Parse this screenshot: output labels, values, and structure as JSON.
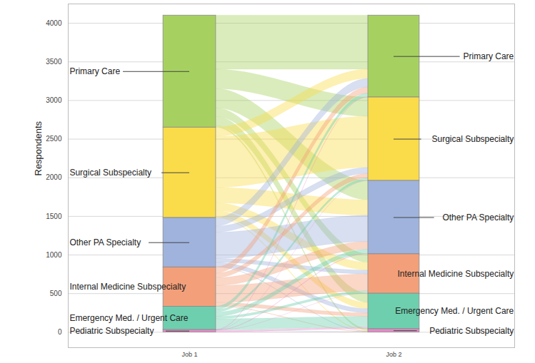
{
  "chart_data": {
    "type": "alluvial",
    "categories": [
      "Job 1",
      "Job 2"
    ],
    "y_label": "Respondents",
    "ylim": [
      -200,
      4250
    ],
    "yticks": [
      0,
      500,
      1000,
      1500,
      2000,
      2500,
      3000,
      3500,
      4000
    ],
    "grid": true,
    "nodes": [
      {
        "name": "Primary Care",
        "color": "#a6d160"
      },
      {
        "name": "Surgical Subspecialty",
        "color": "#fadc4a"
      },
      {
        "name": "Other PA Specialty",
        "color": "#9fb3dd"
      },
      {
        "name": "Internal Medicine Subspecialty",
        "color": "#f3a07a"
      },
      {
        "name": "Emergency Med. / Urgent Care",
        "color": "#6ecfae"
      },
      {
        "name": "Pediatric Subspecialty",
        "color": "#e88ac8"
      }
    ],
    "flows": [
      {
        "from": "Primary Care",
        "to": "Primary Care",
        "value": 700
      },
      {
        "from": "Primary Care",
        "to": "Surgical Subspecialty",
        "value": 250
      },
      {
        "from": "Primary Care",
        "to": "Other PA Specialty",
        "value": 250
      },
      {
        "from": "Primary Care",
        "to": "Internal Medicine Subspecialty",
        "value": 110
      },
      {
        "from": "Primary Care",
        "to": "Emergency Med. / Urgent Care",
        "value": 120
      },
      {
        "from": "Primary Care",
        "to": "Pediatric Subspecialty",
        "value": 20
      },
      {
        "from": "Surgical Subspecialty",
        "to": "Primary Care",
        "value": 120
      },
      {
        "from": "Surgical Subspecialty",
        "to": "Surgical Subspecialty",
        "value": 660
      },
      {
        "from": "Surgical Subspecialty",
        "to": "Other PA Specialty",
        "value": 200
      },
      {
        "from": "Surgical Subspecialty",
        "to": "Internal Medicine Subspecialty",
        "value": 100
      },
      {
        "from": "Surgical Subspecialty",
        "to": "Emergency Med. / Urgent Care",
        "value": 80
      },
      {
        "from": "Surgical Subspecialty",
        "to": "Pediatric Subspecialty",
        "value": 10
      },
      {
        "from": "Other PA Specialty",
        "to": "Primary Care",
        "value": 110
      },
      {
        "from": "Other PA Specialty",
        "to": "Surgical Subspecialty",
        "value": 80
      },
      {
        "from": "Other PA Specialty",
        "to": "Other PA Specialty",
        "value": 340
      },
      {
        "from": "Other PA Specialty",
        "to": "Internal Medicine Subspecialty",
        "value": 50
      },
      {
        "from": "Other PA Specialty",
        "to": "Emergency Med. / Urgent Care",
        "value": 55
      },
      {
        "from": "Other PA Specialty",
        "to": "Pediatric Subspecialty",
        "value": 5
      },
      {
        "from": "Internal Medicine Subspecialty",
        "to": "Primary Care",
        "value": 80
      },
      {
        "from": "Internal Medicine Subspecialty",
        "to": "Surgical Subspecialty",
        "value": 60
      },
      {
        "from": "Internal Medicine Subspecialty",
        "to": "Other PA Specialty",
        "value": 100
      },
      {
        "from": "Internal Medicine Subspecialty",
        "to": "Internal Medicine Subspecialty",
        "value": 220
      },
      {
        "from": "Internal Medicine Subspecialty",
        "to": "Emergency Med. / Urgent Care",
        "value": 45
      },
      {
        "from": "Internal Medicine Subspecialty",
        "to": "Pediatric Subspecialty",
        "value": 5
      },
      {
        "from": "Emergency Med. / Urgent Care",
        "to": "Primary Care",
        "value": 45
      },
      {
        "from": "Emergency Med. / Urgent Care",
        "to": "Surgical Subspecialty",
        "value": 30
      },
      {
        "from": "Emergency Med. / Urgent Care",
        "to": "Other PA Specialty",
        "value": 55
      },
      {
        "from": "Emergency Med. / Urgent Care",
        "to": "Internal Medicine Subspecialty",
        "value": 30
      },
      {
        "from": "Emergency Med. / Urgent Care",
        "to": "Emergency Med. / Urgent Care",
        "value": 140
      },
      {
        "from": "Emergency Med. / Urgent Care",
        "to": "Pediatric Subspecialty",
        "value": 0
      },
      {
        "from": "Pediatric Subspecialty",
        "to": "Primary Care",
        "value": 5
      },
      {
        "from": "Pediatric Subspecialty",
        "to": "Surgical Subspecialty",
        "value": 0
      },
      {
        "from": "Pediatric Subspecialty",
        "to": "Other PA Specialty",
        "value": 5
      },
      {
        "from": "Pediatric Subspecialty",
        "to": "Internal Medicine Subspecialty",
        "value": 0
      },
      {
        "from": "Pediatric Subspecialty",
        "to": "Emergency Med. / Urgent Care",
        "value": 20
      },
      {
        "from": "Pediatric Subspecialty",
        "to": "Pediatric Subspecialty",
        "value": 0
      }
    ]
  }
}
